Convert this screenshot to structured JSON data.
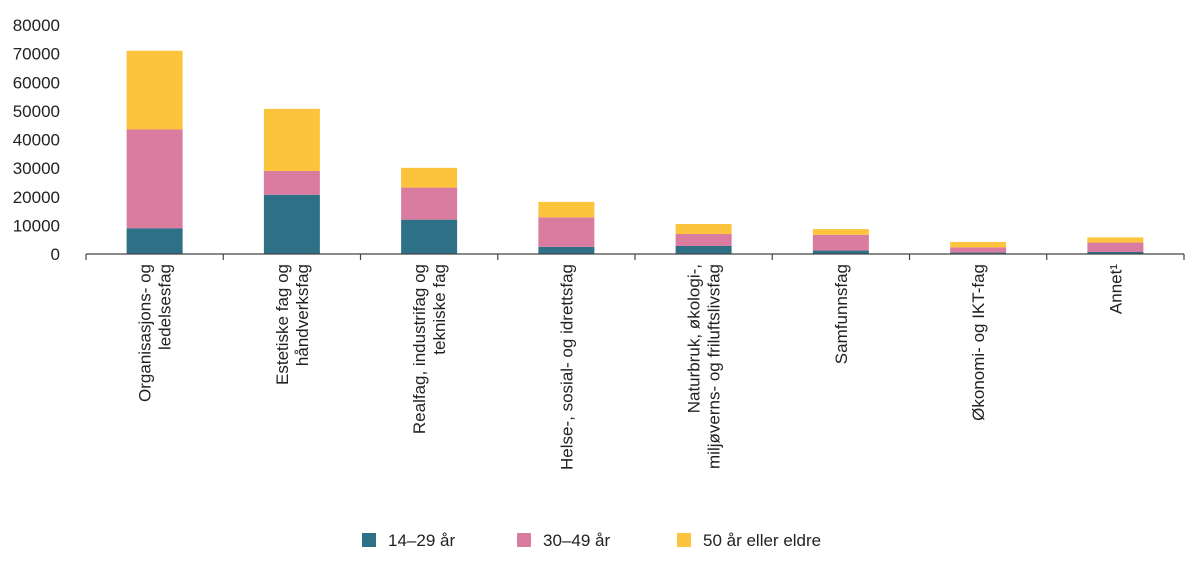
{
  "chart_data": {
    "type": "bar",
    "stacked": true,
    "title": "",
    "xlabel": "",
    "ylabel": "",
    "ylim": [
      0,
      80000
    ],
    "yticks": [
      0,
      10000,
      20000,
      30000,
      40000,
      50000,
      60000,
      70000,
      80000
    ],
    "grid": false,
    "legend_position": "bottom",
    "categories": [
      [
        "Organisasjons- og",
        "ledelsesfag"
      ],
      [
        "Estetiske fag og",
        "håndverksfag"
      ],
      [
        "Realfag, industrifag og",
        "tekniske fag"
      ],
      [
        "Helse-, sosial- og idrettsfag"
      ],
      [
        "Naturbruk, økologi-,",
        "miljøverns- og friluftslivsfag"
      ],
      [
        "Samfunnsfag"
      ],
      [
        "Økonomi- og IKT-fag"
      ],
      [
        "Annet¹"
      ]
    ],
    "series": [
      {
        "name": "14–29 år",
        "color": "#2e7187",
        "values": [
          9000,
          20700,
          12000,
          2500,
          2800,
          1200,
          500,
          700
        ]
      },
      {
        "name": "30–49 år",
        "color": "#d97c9f",
        "values": [
          34500,
          8300,
          11200,
          10300,
          4200,
          5500,
          1800,
          3300
        ]
      },
      {
        "name": "50 år eller eldre",
        "color": "#fcc43d",
        "values": [
          27500,
          21700,
          6900,
          5400,
          3500,
          2000,
          1900,
          1800
        ]
      }
    ]
  }
}
